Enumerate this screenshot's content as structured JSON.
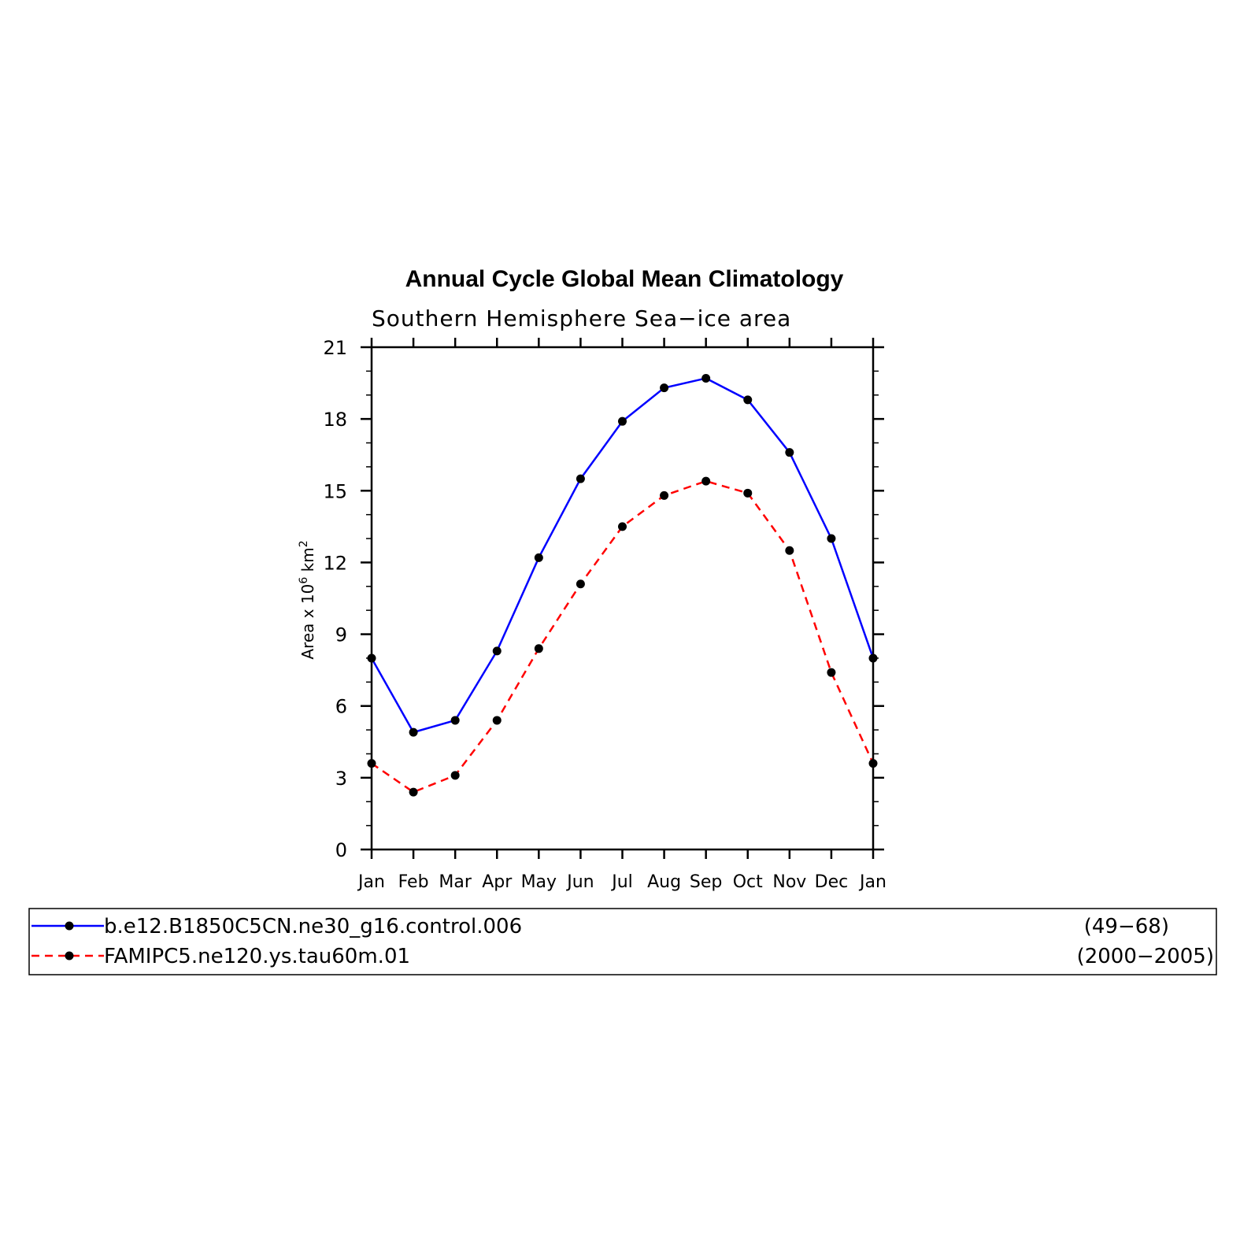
{
  "chart_data": {
    "type": "line",
    "title": "Annual Cycle Global Mean Climatology",
    "subtitle": "Southern Hemisphere Sea−ice area",
    "xlabel": "",
    "ylabel": "Area x 10",
    "ylabel_exponent": "6",
    "ylabel_unit": " km",
    "ylabel_unit_exponent": "2",
    "categories": [
      "Jan",
      "Feb",
      "Mar",
      "Apr",
      "May",
      "Jun",
      "Jul",
      "Aug",
      "Sep",
      "Oct",
      "Nov",
      "Dec",
      "Jan"
    ],
    "ylim": [
      0,
      21
    ],
    "yticks": [
      0,
      3,
      6,
      9,
      12,
      15,
      18,
      21
    ],
    "grid": false,
    "legend_position": "bottom",
    "series": [
      {
        "name": "b.e12.B1850C5CN.ne30_g16.control.006",
        "years": "(49−68)",
        "color": "#0000ff",
        "dash": "solid",
        "values": [
          8.0,
          4.9,
          5.4,
          8.3,
          12.2,
          15.5,
          17.9,
          19.3,
          19.7,
          18.8,
          16.6,
          13.0,
          8.0
        ]
      },
      {
        "name": "FAMIPC5.ne120.ys.tau60m.01",
        "years": "(2000−2005)",
        "color": "#ff0000",
        "dash": "dashed",
        "values": [
          3.6,
          2.4,
          3.1,
          5.4,
          8.4,
          11.1,
          13.5,
          14.8,
          15.4,
          14.9,
          12.5,
          7.4,
          3.6
        ]
      }
    ]
  }
}
